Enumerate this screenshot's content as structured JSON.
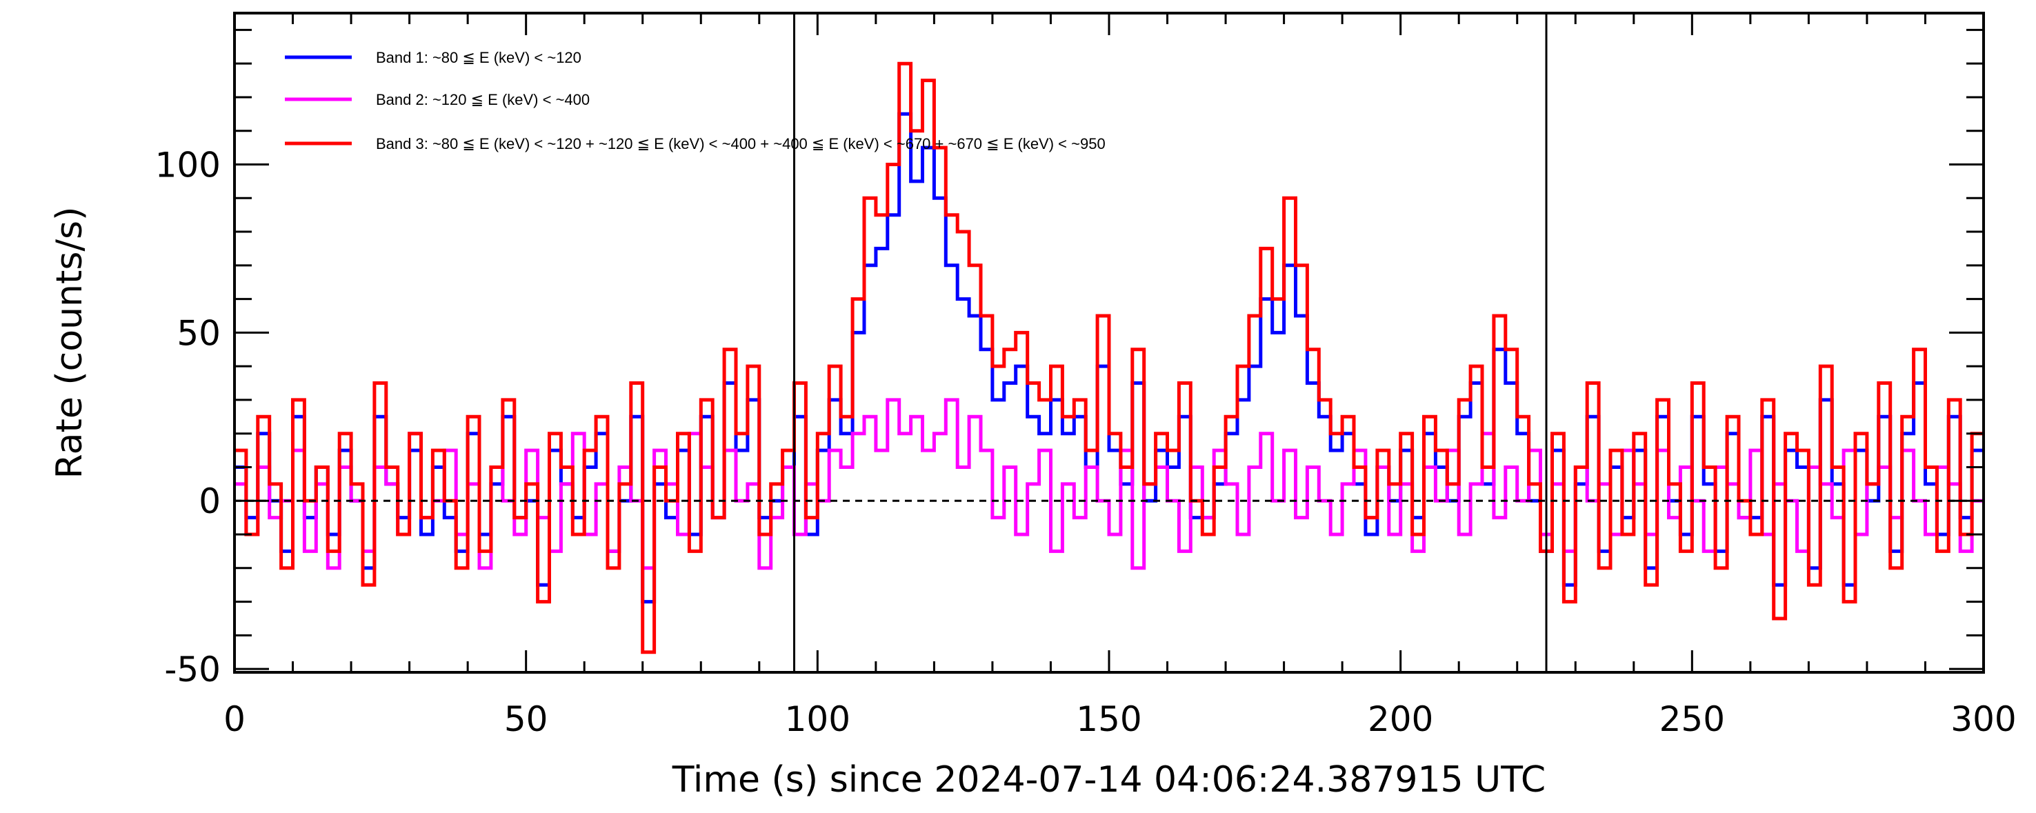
{
  "chart_data": {
    "type": "line",
    "style": "histogram-step",
    "title": "",
    "xlabel": "Time (s) since 2024-07-14 04:06:24.387915 UTC",
    "ylabel": "Rate (counts/s)",
    "xlim": [
      0,
      300
    ],
    "ylim": [
      -51,
      145
    ],
    "xticks": [
      "0",
      "50",
      "100",
      "150",
      "200",
      "250",
      "300"
    ],
    "yticks": [
      "-50",
      "0",
      "50",
      "100"
    ],
    "xtick_values": [
      0,
      50,
      100,
      150,
      200,
      250,
      300
    ],
    "ytick_values": [
      -50,
      0,
      50,
      100
    ],
    "grid": false,
    "legend_position": "top-left",
    "reference_lines": {
      "vertical_x": [
        96,
        225
      ],
      "horizontal_dashed_y": 0
    },
    "bin_width": 2,
    "x_start": 0,
    "series": [
      {
        "name": "Band 1: ~80 ≦ E (keV) < ~120",
        "color": "#0000ff",
        "values": [
          10,
          -5,
          20,
          0,
          -15,
          25,
          -5,
          10,
          -10,
          15,
          0,
          -20,
          25,
          5,
          -5,
          15,
          -10,
          10,
          -5,
          -15,
          20,
          -10,
          5,
          25,
          -5,
          0,
          -25,
          15,
          5,
          -5,
          10,
          20,
          -15,
          0,
          25,
          -30,
          5,
          -5,
          15,
          -10,
          25,
          -5,
          35,
          15,
          30,
          -5,
          0,
          10,
          25,
          -10,
          15,
          30,
          20,
          50,
          70,
          75,
          85,
          115,
          95,
          105,
          90,
          70,
          60,
          55,
          45,
          30,
          35,
          40,
          25,
          20,
          30,
          20,
          25,
          10,
          40,
          15,
          5,
          35,
          0,
          15,
          10,
          25,
          -5,
          -5,
          5,
          20,
          30,
          40,
          60,
          50,
          70,
          55,
          35,
          25,
          15,
          20,
          5,
          -10,
          10,
          0,
          15,
          -5,
          20,
          10,
          0,
          25,
          35,
          5,
          45,
          35,
          20,
          0,
          -15,
          15,
          -25,
          5,
          25,
          -15,
          10,
          -5,
          15,
          -20,
          25,
          0,
          -10,
          25,
          5,
          -15,
          20,
          -5,
          -5,
          25,
          -25,
          15,
          10,
          -20,
          30,
          5,
          -25,
          15,
          0,
          25,
          -15,
          20,
          35,
          5,
          -10,
          25,
          -5,
          15
        ]
      },
      {
        "name": "Band 2: ~120 ≦ E (keV) < ~400",
        "color": "#ff00ff",
        "values": [
          5,
          -10,
          10,
          -5,
          0,
          15,
          -15,
          5,
          -20,
          10,
          0,
          -15,
          10,
          5,
          -10,
          20,
          -5,
          0,
          15,
          -10,
          5,
          -20,
          10,
          0,
          -10,
          15,
          -5,
          -15,
          5,
          20,
          -10,
          5,
          -15,
          10,
          0,
          -20,
          15,
          5,
          -10,
          20,
          10,
          -5,
          15,
          0,
          5,
          -20,
          -5,
          10,
          -10,
          5,
          0,
          15,
          10,
          20,
          25,
          15,
          30,
          20,
          25,
          15,
          20,
          30,
          10,
          25,
          15,
          -5,
          10,
          -10,
          5,
          15,
          -15,
          5,
          -5,
          10,
          0,
          -10,
          15,
          -20,
          5,
          10,
          0,
          -15,
          10,
          -5,
          15,
          5,
          -10,
          10,
          20,
          0,
          15,
          -5,
          10,
          0,
          -10,
          5,
          15,
          -5,
          10,
          -10,
          5,
          -15,
          10,
          0,
          15,
          -10,
          5,
          20,
          -5,
          10,
          0,
          15,
          -10,
          5,
          -15,
          10,
          0,
          5,
          -10,
          15,
          5,
          -10,
          15,
          -5,
          10,
          0,
          -15,
          10,
          5,
          -5,
          15,
          -10,
          5,
          0,
          -15,
          10,
          5,
          -5,
          15,
          -10,
          5,
          10,
          -5,
          15,
          0,
          -10,
          10,
          5,
          -15,
          0
        ]
      },
      {
        "name": "Band 3: ~80 ≦ E (keV) < ~120 + ~120 ≦ E (keV) < ~400 + ~400 ≦ E (keV) < ~670 + ~670 ≦ E (keV) < ~950",
        "color": "#ff0000",
        "values": [
          15,
          -10,
          25,
          5,
          -20,
          30,
          0,
          10,
          -15,
          20,
          5,
          -25,
          35,
          10,
          -10,
          20,
          -5,
          15,
          0,
          -20,
          25,
          -15,
          10,
          30,
          -5,
          5,
          -30,
          20,
          10,
          -10,
          15,
          25,
          -20,
          5,
          35,
          -45,
          10,
          0,
          20,
          -15,
          30,
          -5,
          45,
          20,
          40,
          -10,
          5,
          15,
          35,
          -5,
          20,
          40,
          25,
          60,
          90,
          85,
          100,
          130,
          110,
          125,
          105,
          85,
          80,
          70,
          55,
          40,
          45,
          50,
          35,
          30,
          40,
          25,
          30,
          15,
          55,
          20,
          10,
          45,
          5,
          20,
          15,
          35,
          0,
          -10,
          10,
          25,
          40,
          55,
          75,
          60,
          90,
          70,
          45,
          30,
          20,
          25,
          10,
          -5,
          15,
          5,
          20,
          -10,
          25,
          15,
          5,
          30,
          40,
          10,
          55,
          45,
          25,
          5,
          -15,
          20,
          -30,
          10,
          35,
          -20,
          15,
          -10,
          20,
          -25,
          30,
          5,
          -15,
          35,
          10,
          -20,
          25,
          0,
          -10,
          30,
          -35,
          20,
          15,
          -25,
          40,
          10,
          -30,
          20,
          5,
          35,
          -20,
          25,
          45,
          10,
          -15,
          30,
          -10,
          20
        ]
      }
    ]
  }
}
